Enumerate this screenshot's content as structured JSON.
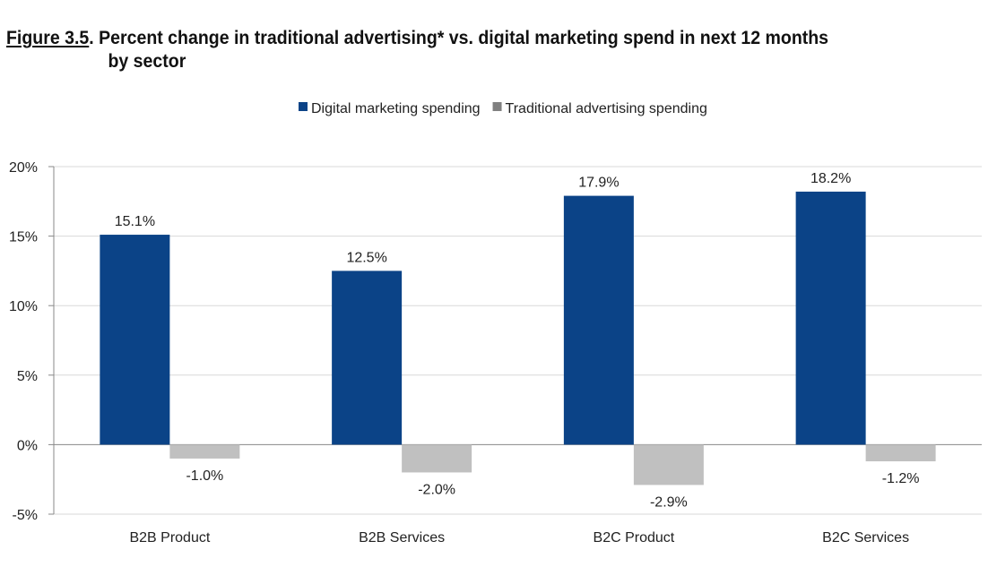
{
  "title": {
    "figure": "Figure 3.5",
    "line1": ". Percent change in traditional advertising* vs. digital marketing spend in next 12 months",
    "line2": "by sector"
  },
  "chart_data": {
    "type": "bar",
    "categories": [
      "B2B Product",
      "B2B Services",
      "B2C Product",
      "B2C Services"
    ],
    "series": [
      {
        "name": "Digital marketing spending",
        "values": [
          15.1,
          12.5,
          17.9,
          18.2
        ],
        "labels": [
          "15.1%",
          "12.5%",
          "17.9%",
          "18.2%"
        ],
        "color": "#0b4387"
      },
      {
        "name": "Traditional advertising spending",
        "values": [
          -1.0,
          -2.0,
          -2.9,
          -1.2
        ],
        "labels": [
          "-1.0%",
          "-2.0%",
          "-2.9%",
          "-1.2%"
        ],
        "color": "#c0c0c0",
        "legend_color": "#808080"
      }
    ],
    "ylim": [
      -5,
      20
    ],
    "yticks": [
      20,
      15,
      10,
      5,
      0,
      -5
    ],
    "ytick_labels": [
      "20%",
      "15%",
      "10%",
      "5%",
      "0%",
      "-5%"
    ],
    "grid": true,
    "legend_position": "top-center"
  }
}
